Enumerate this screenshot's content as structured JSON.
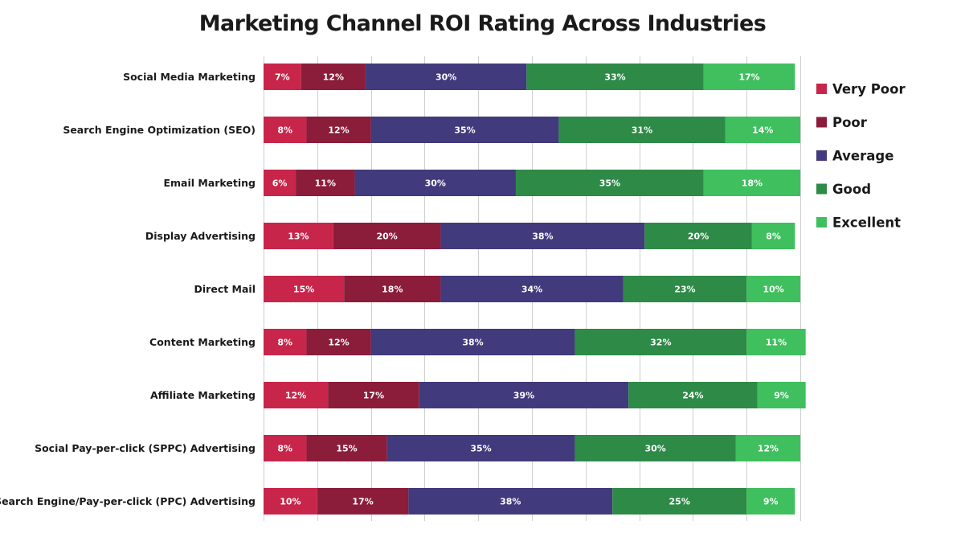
{
  "chart_data": {
    "type": "bar",
    "orientation": "horizontal",
    "stacked": true,
    "title": "Marketing Channel ROI Rating Across Industries",
    "xlabel": "",
    "ylabel": "",
    "xlim": [
      0,
      100
    ],
    "grid": true,
    "legend_position": "right",
    "value_suffix": "%",
    "categories": [
      "Social Media Marketing",
      "Search Engine Optimization (SEO)",
      "Email Marketing",
      "Display Advertising",
      "Direct Mail",
      "Content Marketing",
      "Affiliate Marketing",
      "Social Pay-per-click (SPPC) Advertising",
      "Search Engine/Pay-per-click (PPC) Advertising"
    ],
    "series": [
      {
        "name": "Very Poor",
        "color": "#c8254a",
        "values": [
          7,
          8,
          6,
          13,
          15,
          8,
          12,
          8,
          10
        ]
      },
      {
        "name": "Poor",
        "color": "#8b1c3a",
        "values": [
          12,
          12,
          11,
          20,
          18,
          12,
          17,
          15,
          17
        ]
      },
      {
        "name": "Average",
        "color": "#413a7c",
        "values": [
          30,
          35,
          30,
          38,
          34,
          38,
          39,
          35,
          38
        ]
      },
      {
        "name": "Good",
        "color": "#2e8a47",
        "values": [
          33,
          31,
          35,
          20,
          23,
          32,
          24,
          30,
          25
        ]
      },
      {
        "name": "Excellent",
        "color": "#3fbf5e",
        "values": [
          17,
          14,
          18,
          8,
          10,
          11,
          9,
          12,
          9
        ]
      }
    ]
  }
}
